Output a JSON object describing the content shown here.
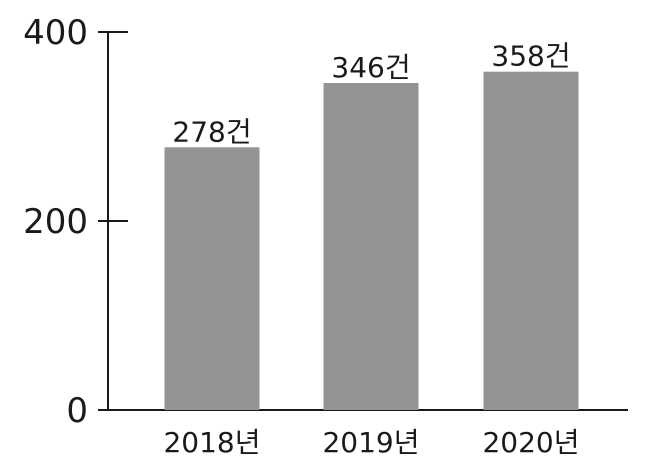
{
  "chart_data": {
    "type": "bar",
    "categories": [
      "2018년",
      "2019년",
      "2020년"
    ],
    "values": [
      278,
      346,
      358
    ],
    "data_labels": [
      "278건",
      "346건",
      "358건"
    ],
    "yticks": [
      "0",
      "200",
      "400"
    ],
    "ylim": [
      0,
      400
    ],
    "grid": false,
    "legend": "none",
    "bar_color": "#949494",
    "axis_color": "#1a1a1a"
  }
}
